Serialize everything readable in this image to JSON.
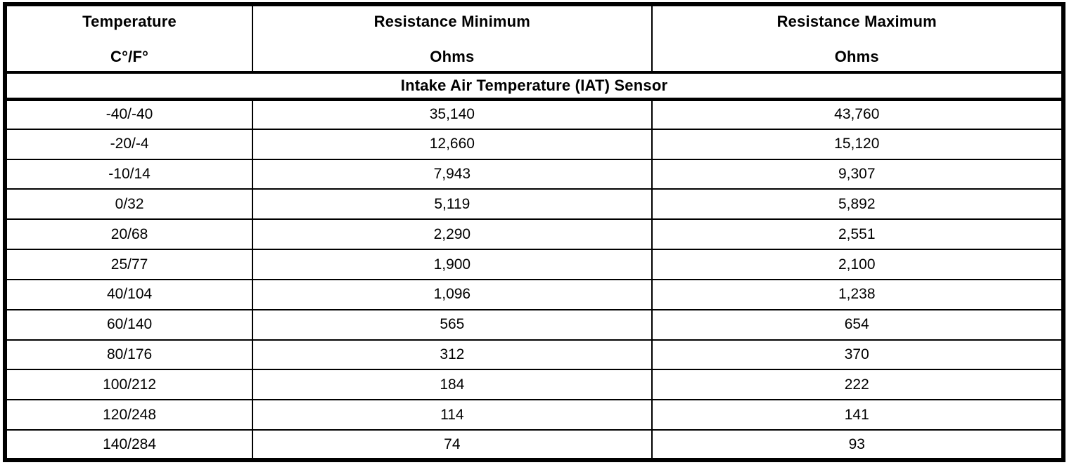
{
  "page": {
    "background": "#ffffff",
    "line_color": "#000000",
    "text_color": "#000000"
  },
  "table": {
    "columns": [
      {
        "label": "Temperature",
        "unit": "C°/F°"
      },
      {
        "label": "Resistance Minimum",
        "unit": "Ohms"
      },
      {
        "label": "Resistance Maximum",
        "unit": "Ohms"
      }
    ],
    "section_title": "Intake Air Temperature (IAT) Sensor",
    "rows": [
      {
        "temp": "-40/-40",
        "min": "35,140",
        "max": "43,760"
      },
      {
        "temp": "-20/-4",
        "min": "12,660",
        "max": "15,120"
      },
      {
        "temp": "-10/14",
        "min": "7,943",
        "max": "9,307"
      },
      {
        "temp": "0/32",
        "min": "5,119",
        "max": "5,892"
      },
      {
        "temp": "20/68",
        "min": "2,290",
        "max": "2,551"
      },
      {
        "temp": "25/77",
        "min": "1,900",
        "max": "2,100"
      },
      {
        "temp": "40/104",
        "min": "1,096",
        "max": "1,238"
      },
      {
        "temp": "60/140",
        "min": "565",
        "max": "654"
      },
      {
        "temp": "80/176",
        "min": "312",
        "max": "370"
      },
      {
        "temp": "100/212",
        "min": "184",
        "max": "222"
      },
      {
        "temp": "120/248",
        "min": "114",
        "max": "141"
      },
      {
        "temp": "140/284",
        "min": "74",
        "max": "93"
      }
    ]
  }
}
